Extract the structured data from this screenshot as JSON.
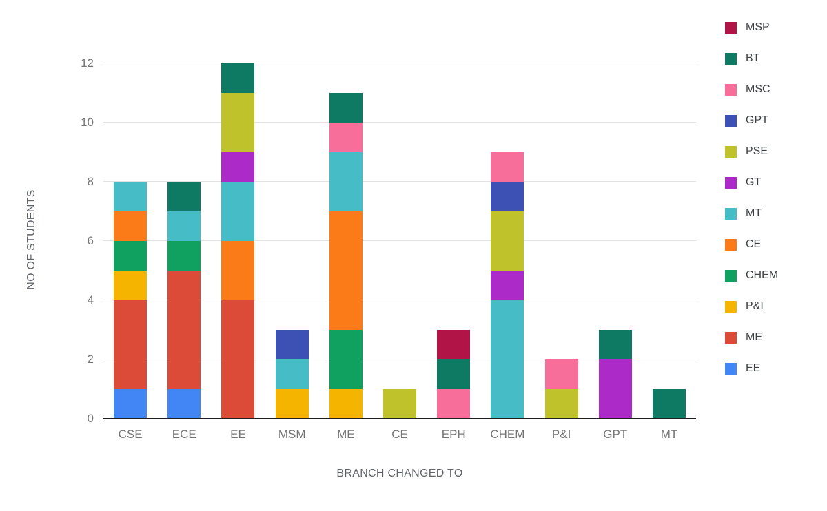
{
  "chart_data": {
    "type": "bar",
    "stacked": true,
    "title": "",
    "xlabel": "BRANCH CHANGED TO",
    "ylabel": "NO OF STUDENTS",
    "ylim": [
      0,
      12
    ],
    "yticks": [
      0,
      2,
      4,
      6,
      8,
      10,
      12
    ],
    "grid": true,
    "categories": [
      "CSE",
      "ECE",
      "EE",
      "MSM",
      "ME",
      "CE",
      "EPH",
      "CHEM",
      "P&I",
      "GPT",
      "MT"
    ],
    "series": [
      {
        "name": "EE",
        "color": "#4285f4",
        "values": [
          1,
          1,
          0,
          0,
          0,
          0,
          0,
          0,
          0,
          0,
          0
        ]
      },
      {
        "name": "ME",
        "color": "#dc4a38",
        "values": [
          3,
          4,
          4,
          0,
          0,
          0,
          0,
          0,
          0,
          0,
          0
        ]
      },
      {
        "name": "P&I",
        "color": "#f4b400",
        "values": [
          1,
          0,
          0,
          1,
          1,
          0,
          0,
          0,
          0,
          0,
          0
        ]
      },
      {
        "name": "CHEM",
        "color": "#10a05f",
        "values": [
          1,
          1,
          0,
          0,
          2,
          0,
          0,
          0,
          0,
          0,
          0
        ]
      },
      {
        "name": "CE",
        "color": "#fa7b17",
        "values": [
          1,
          0,
          2,
          0,
          4,
          0,
          0,
          0,
          0,
          0,
          0
        ]
      },
      {
        "name": "MT",
        "color": "#46bdc6",
        "values": [
          1,
          1,
          2,
          1,
          2,
          0,
          0,
          4,
          0,
          0,
          0
        ]
      },
      {
        "name": "GT",
        "color": "#ab2ac8",
        "values": [
          0,
          0,
          1,
          0,
          0,
          0,
          0,
          1,
          0,
          2,
          0
        ]
      },
      {
        "name": "PSE",
        "color": "#bfc22b",
        "values": [
          0,
          0,
          2,
          0,
          0,
          1,
          0,
          2,
          1,
          0,
          0
        ]
      },
      {
        "name": "GPT",
        "color": "#3d51b5",
        "values": [
          0,
          0,
          0,
          1,
          0,
          0,
          0,
          1,
          0,
          0,
          0
        ]
      },
      {
        "name": "MSC",
        "color": "#f76e9b",
        "values": [
          0,
          0,
          0,
          0,
          1,
          0,
          1,
          1,
          1,
          0,
          0
        ]
      },
      {
        "name": "BT",
        "color": "#0e7a63",
        "values": [
          0,
          1,
          1,
          0,
          1,
          0,
          1,
          0,
          0,
          1,
          1
        ]
      },
      {
        "name": "MSP",
        "color": "#b11548",
        "values": [
          0,
          0,
          0,
          0,
          0,
          0,
          1,
          0,
          0,
          0,
          0
        ]
      }
    ],
    "legend": {
      "position": "right",
      "order": [
        "MSP",
        "BT",
        "MSC",
        "GPT",
        "PSE",
        "GT",
        "MT",
        "CE",
        "CHEM",
        "P&I",
        "ME",
        "EE"
      ]
    }
  }
}
